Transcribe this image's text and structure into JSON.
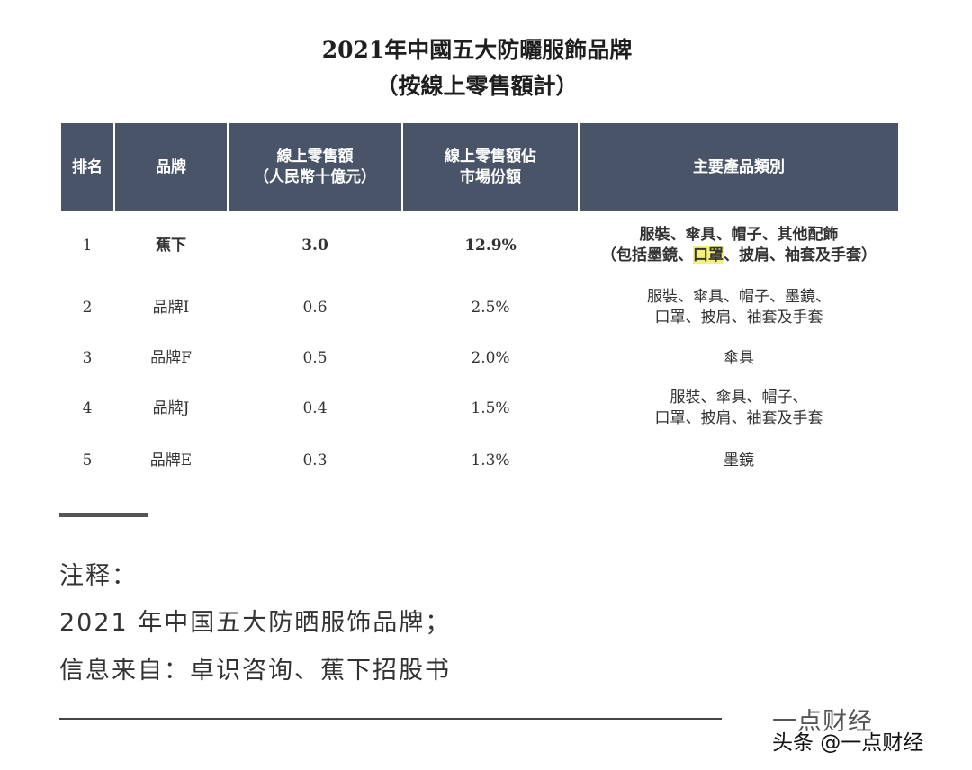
{
  "title": {
    "line1": "2021年中國五大防曬服飾品牌",
    "line2": "（按線上零售額計）"
  },
  "table": {
    "headers": [
      "排名",
      "品牌",
      "線上零售額\n（人民幣十億元）",
      "線上零售額佔\n市場份額",
      "主要產品類別"
    ],
    "rows": [
      {
        "rank": "1",
        "brand": "蕉下",
        "sales": "3.0",
        "share": "12.9%",
        "categories_line1": "服裝、傘具、帽子、其他配飾",
        "categories_pre": "（包括墨鏡、",
        "categories_highlight": "口罩",
        "categories_post": "、披肩、袖套及手套）"
      },
      {
        "rank": "2",
        "brand": "品牌I",
        "sales": "0.6",
        "share": "2.5%",
        "categories": "服裝、傘具、帽子、墨鏡、\n口罩、披肩、袖套及手套"
      },
      {
        "rank": "3",
        "brand": "品牌F",
        "sales": "0.5",
        "share": "2.0%",
        "categories": "傘具"
      },
      {
        "rank": "4",
        "brand": "品牌J",
        "sales": "0.4",
        "share": "1.5%",
        "categories": "服裝、傘具、帽子、\n口罩、披肩、袖套及手套"
      },
      {
        "rank": "5",
        "brand": "品牌E",
        "sales": "0.3",
        "share": "1.3%",
        "categories": "墨鏡"
      }
    ]
  },
  "notes": {
    "heading": "注释：",
    "line1": "2021 年中国五大防晒服饰品牌；",
    "line2": "信息来自：卓识咨询、蕉下招股书"
  },
  "watermark": {
    "faint": "一点财经",
    "main": "头条 @一点财经"
  },
  "colors": {
    "header_bg": "#4a5468",
    "highlight": "#f4f07a"
  }
}
